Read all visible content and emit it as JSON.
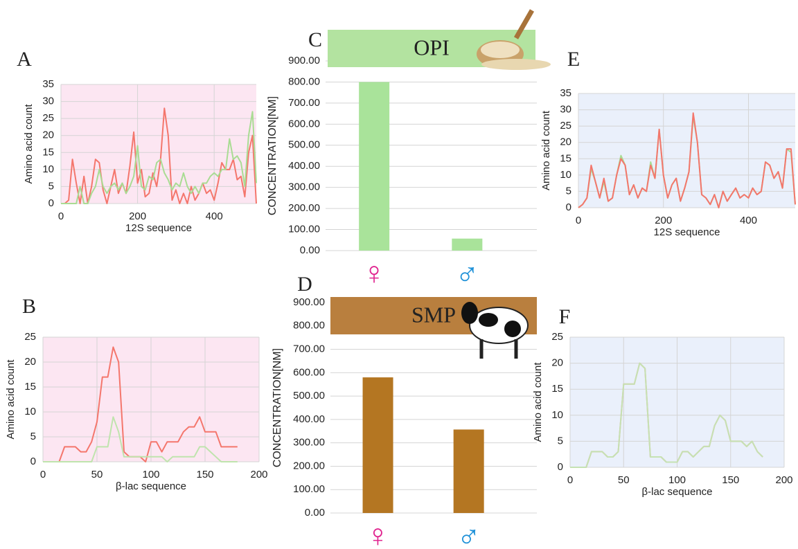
{
  "chart_data": [
    {
      "type": "line",
      "panel": "A",
      "xlabel": "12S sequence",
      "ylabel": "Amino acid count",
      "background": "#fce6f2",
      "grid": true,
      "xlim": [
        0,
        510
      ],
      "xticks": [
        0,
        200,
        400
      ],
      "ylim": [
        0,
        35
      ],
      "yticks": [
        0,
        5,
        10,
        15,
        20,
        25,
        30,
        35
      ],
      "x": [
        0,
        10,
        20,
        30,
        40,
        50,
        60,
        70,
        80,
        90,
        100,
        110,
        120,
        130,
        140,
        150,
        160,
        170,
        180,
        190,
        200,
        210,
        220,
        230,
        240,
        250,
        260,
        270,
        280,
        290,
        300,
        310,
        320,
        330,
        340,
        350,
        360,
        370,
        380,
        390,
        400,
        410,
        420,
        430,
        440,
        450,
        460,
        470,
        480,
        490,
        500,
        510
      ],
      "series": [
        {
          "color": "#f4766c",
          "values": [
            0,
            0,
            1,
            13,
            6,
            0,
            8,
            0,
            5,
            13,
            12,
            4,
            0,
            5,
            10,
            3,
            6,
            3,
            11,
            21,
            6,
            10,
            2,
            3,
            9,
            5,
            13,
            28,
            20,
            1,
            4,
            0,
            3,
            0,
            5,
            1,
            3,
            6,
            3,
            4,
            1,
            6,
            12,
            10,
            10,
            13,
            7,
            8,
            2,
            15,
            20,
            0
          ]
        },
        {
          "color": "#a9dc93",
          "values": [
            0,
            0,
            0,
            0,
            0,
            5,
            0,
            0,
            3,
            5,
            10,
            5,
            3,
            5,
            6,
            4,
            6,
            3,
            5,
            8,
            17,
            5,
            4,
            8,
            7,
            12,
            13,
            9,
            7,
            4,
            6,
            5,
            9,
            5,
            3,
            5,
            3,
            6,
            6,
            8,
            9,
            8,
            10,
            10,
            19,
            13,
            14,
            12,
            5,
            20,
            27,
            6
          ]
        }
      ]
    },
    {
      "type": "line",
      "panel": "B",
      "xlabel": "β-lac sequence",
      "ylabel": "Amino acid count",
      "background": "#fce6f2",
      "grid": true,
      "xlim": [
        0,
        200
      ],
      "xticks": [
        0,
        50,
        100,
        150,
        200
      ],
      "ylim": [
        0,
        25
      ],
      "yticks": [
        0,
        5,
        10,
        15,
        20,
        25
      ],
      "x": [
        0,
        5,
        10,
        15,
        20,
        25,
        30,
        35,
        40,
        45,
        50,
        55,
        60,
        65,
        70,
        75,
        80,
        85,
        90,
        95,
        100,
        105,
        110,
        115,
        120,
        125,
        130,
        135,
        140,
        145,
        150,
        155,
        160,
        165,
        170,
        175,
        180
      ],
      "series": [
        {
          "color": "#f4766c",
          "values": [
            0,
            0,
            0,
            0,
            3,
            3,
            3,
            2,
            2,
            4,
            8,
            17,
            17,
            23,
            20,
            2,
            1,
            1,
            1,
            0,
            4,
            4,
            2,
            4,
            4,
            4,
            6,
            7,
            7,
            9,
            6,
            6,
            6,
            3,
            3,
            3,
            3
          ]
        },
        {
          "color": "#bfe4ad",
          "values": [
            0,
            0,
            0,
            0,
            0,
            0,
            0,
            0,
            0,
            0,
            3,
            3,
            3,
            9,
            6,
            1,
            1,
            1,
            1,
            1,
            1,
            1,
            1,
            0,
            1,
            1,
            1,
            1,
            1,
            3,
            3,
            2,
            1,
            0,
            0,
            0,
            0
          ]
        }
      ]
    },
    {
      "type": "bar",
      "panel": "C",
      "title": "OPI",
      "banner_color": "#b3e3a0",
      "ylabel": "CONCENTRATION[NM]",
      "color": "#a9e39a",
      "grid": true,
      "categories": [
        "♀",
        "♂"
      ],
      "category_colors": [
        "#e0248f",
        "#1f91d8"
      ],
      "values": [
        800,
        57
      ],
      "ylim": [
        0,
        900
      ],
      "yticks": [
        {
          "value": 0,
          "label": "0.00"
        },
        {
          "value": 100,
          "label": "100.00"
        },
        {
          "value": 200,
          "label": "200.00"
        },
        {
          "value": 300,
          "label": "300.00"
        },
        {
          "value": 400,
          "label": "400.00"
        },
        {
          "value": 500,
          "label": "500.00"
        },
        {
          "value": 600,
          "label": "600.00"
        },
        {
          "value": 700,
          "label": "700.00"
        },
        {
          "value": 800,
          "label": "800.00"
        },
        {
          "value": 900,
          "label": "900.00"
        }
      ]
    },
    {
      "type": "bar",
      "panel": "D",
      "title": "SMP",
      "banner_color": "#b97f3e",
      "ylabel": "CONCENTRATION[NM]",
      "color": "#b47622",
      "grid": true,
      "categories": [
        "♀",
        "♂"
      ],
      "category_colors": [
        "#e0248f",
        "#1f91d8"
      ],
      "values": [
        580,
        357
      ],
      "ylim": [
        0,
        900
      ],
      "yticks": [
        {
          "value": 0,
          "label": "0.00"
        },
        {
          "value": 100,
          "label": "100.00"
        },
        {
          "value": 200,
          "label": "200.00"
        },
        {
          "value": 300,
          "label": "300.00"
        },
        {
          "value": 400,
          "label": "400.00"
        },
        {
          "value": 500,
          "label": "500.00"
        },
        {
          "value": 600,
          "label": "600.00"
        },
        {
          "value": 700,
          "label": "700.00"
        },
        {
          "value": 800,
          "label": "800.00"
        },
        {
          "value": 900,
          "label": "900.00"
        }
      ]
    },
    {
      "type": "line",
      "panel": "E",
      "xlabel": "12S sequence",
      "ylabel": "Amino acid count",
      "background": "#eaf0fb",
      "grid": true,
      "xlim": [
        0,
        510
      ],
      "xticks": [
        0,
        200,
        400
      ],
      "ylim": [
        0,
        35
      ],
      "yticks": [
        0,
        5,
        10,
        15,
        20,
        25,
        30,
        35
      ],
      "x": [
        0,
        10,
        20,
        30,
        40,
        50,
        60,
        70,
        80,
        90,
        100,
        110,
        120,
        130,
        140,
        150,
        160,
        170,
        180,
        190,
        200,
        210,
        220,
        230,
        240,
        250,
        260,
        270,
        280,
        290,
        300,
        310,
        320,
        330,
        340,
        350,
        360,
        370,
        380,
        390,
        400,
        410,
        420,
        430,
        440,
        450,
        460,
        470,
        480,
        490,
        500,
        510
      ],
      "series": [
        {
          "color": "#a9dc93",
          "values": [
            0,
            1,
            3,
            12,
            8,
            3,
            8,
            2,
            3,
            10,
            16,
            13,
            4,
            7,
            3,
            6,
            5,
            14,
            9,
            24,
            10,
            3,
            7,
            9,
            2,
            6,
            11,
            28,
            20,
            4,
            3,
            1,
            4,
            0,
            5,
            2,
            4,
            6,
            3,
            4,
            3,
            6,
            4,
            5,
            14,
            13,
            9,
            11,
            6,
            18,
            17,
            1
          ]
        },
        {
          "color": "#f4766c",
          "values": [
            0,
            1,
            3,
            13,
            8,
            3,
            9,
            2,
            3,
            10,
            15,
            13,
            4,
            7,
            3,
            6,
            5,
            13,
            9,
            24,
            10,
            3,
            7,
            9,
            2,
            6,
            11,
            29,
            20,
            4,
            3,
            1,
            4,
            0,
            5,
            2,
            4,
            6,
            3,
            4,
            3,
            6,
            4,
            5,
            14,
            13,
            9,
            11,
            6,
            18,
            18,
            1
          ]
        }
      ]
    },
    {
      "type": "line",
      "panel": "F",
      "xlabel": "β-lac sequence",
      "ylabel": "Amino acid count",
      "background": "#eaf0fb",
      "grid": true,
      "xlim": [
        0,
        200
      ],
      "xticks": [
        0,
        50,
        100,
        150,
        200
      ],
      "ylim": [
        0,
        25
      ],
      "yticks": [
        0,
        5,
        10,
        15,
        20,
        25
      ],
      "x": [
        0,
        5,
        10,
        15,
        20,
        25,
        30,
        35,
        40,
        45,
        50,
        55,
        60,
        65,
        70,
        75,
        80,
        85,
        90,
        95,
        100,
        105,
        110,
        115,
        120,
        125,
        130,
        135,
        140,
        145,
        150,
        155,
        160,
        165,
        170,
        175,
        180
      ],
      "series": [
        {
          "color": "#f4a08f",
          "values": [
            0,
            0,
            0,
            0,
            3,
            3,
            3,
            2,
            2,
            3,
            16,
            16,
            16,
            20,
            19,
            2,
            2,
            2,
            1,
            1,
            1,
            3,
            3,
            2,
            3,
            4,
            4,
            8,
            10,
            9,
            5,
            5,
            5,
            4,
            5,
            3,
            2
          ]
        },
        {
          "color": "#c5e2b3",
          "values": [
            0,
            0,
            0,
            0,
            3,
            3,
            3,
            2,
            2,
            3,
            16,
            16,
            16,
            20,
            19,
            2,
            2,
            2,
            1,
            1,
            1,
            3,
            3,
            2,
            3,
            4,
            4,
            8,
            10,
            9,
            5,
            5,
            5,
            4,
            5,
            3,
            2
          ]
        }
      ]
    }
  ]
}
